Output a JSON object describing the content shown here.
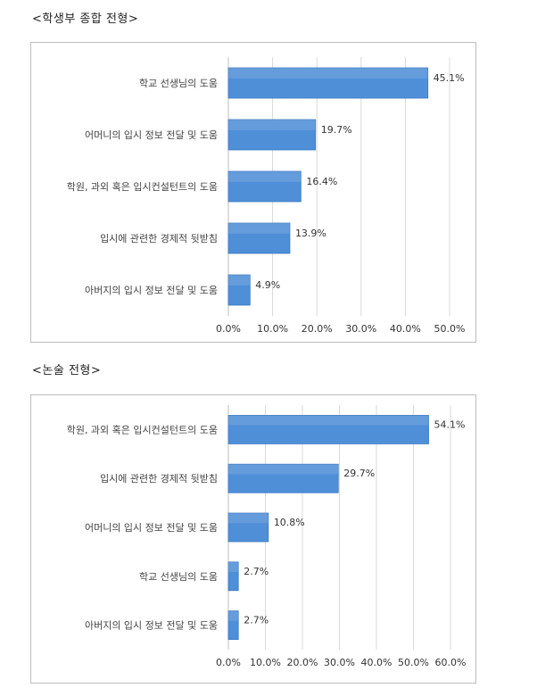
{
  "chart_data": [
    {
      "type": "bar",
      "orientation": "horizontal",
      "title": "<학생부 종합 전형>",
      "categories": [
        "학교 선생님의 도움",
        "어머니의 입시 정보 전달 및 도움",
        "학원, 과외 혹은 입시컨설턴트의 도움",
        "입시에 관련한 경제적 뒷받침",
        "아버지의 입시 정보 전달 및 도움"
      ],
      "values": [
        45.1,
        19.7,
        16.4,
        13.9,
        4.9
      ],
      "value_labels": [
        "45.1%",
        "19.7%",
        "16.4%",
        "13.9%",
        "4.9%"
      ],
      "xlim": [
        0,
        50
      ],
      "x_ticks": [
        "0.0%",
        "10.0%",
        "20.0%",
        "30.0%",
        "40.0%",
        "50.0%"
      ],
      "grid": true,
      "bar_color": "#4f8fd8"
    },
    {
      "type": "bar",
      "orientation": "horizontal",
      "title": "<논술 전형>",
      "categories": [
        "학원, 과외 혹은 입시컨설턴트의 도움",
        "입시에 관련한 경제적 뒷받침",
        "어머니의 입시 정보 전달 및 도움",
        "학교 선생님의 도움",
        "아버지의 입시 정보 전달 및 도움"
      ],
      "values": [
        54.1,
        29.7,
        10.8,
        2.7,
        2.7
      ],
      "value_labels": [
        "54.1%",
        "29.7%",
        "10.8%",
        "2.7%",
        "2.7%"
      ],
      "xlim": [
        0,
        60
      ],
      "x_ticks": [
        "0.0%",
        "10.0%",
        "20.0%",
        "30.0%",
        "40.0%",
        "50.0%",
        "60.0%"
      ],
      "grid": true,
      "bar_color": "#4f8fd8"
    }
  ]
}
